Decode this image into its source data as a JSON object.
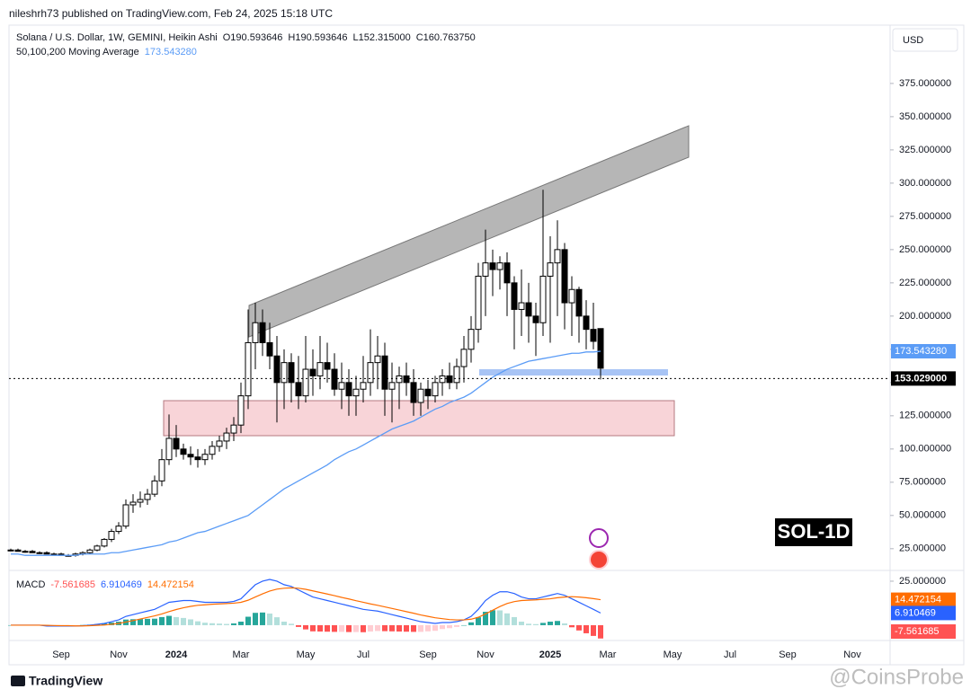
{
  "page": {
    "author_line": "nileshrh73 published on TradingView.com, Feb 24, 2025 15:18 UTC",
    "footer": "TradingView",
    "watermark": "@CoinsProbe"
  },
  "chart_data": {
    "type": "candlestick",
    "title": "Solana / U.S. Dollar, 1W, GEMINI, Heikin Ashi",
    "ohlc_labels": [
      "O190.593646",
      "H190.593646",
      "L152.315000",
      "C160.763750"
    ],
    "currency": "USD",
    "annotation": "SOL-1D",
    "up_color": "#ffffff",
    "down_color": "#000000",
    "categories": [
      null,
      null,
      null,
      null,
      null,
      null,
      null,
      "Sep",
      null,
      null,
      null,
      null,
      null,
      null,
      null,
      "Nov",
      null,
      null,
      null,
      null,
      null,
      null,
      null,
      "2024",
      null,
      null,
      null,
      null,
      null,
      null,
      null,
      null,
      "Mar",
      null,
      null,
      null,
      null,
      null,
      null,
      null,
      null,
      "May",
      null,
      null,
      null,
      null,
      null,
      null,
      null,
      "Jul",
      null,
      null,
      null,
      null,
      null,
      null,
      null,
      null,
      "Sep",
      null,
      null,
      null,
      null,
      null,
      null,
      null,
      "Nov",
      null,
      null,
      null,
      null,
      null,
      null,
      null,
      null,
      "2025",
      null,
      null,
      null,
      null,
      null,
      null,
      null,
      "Mar",
      null,
      null,
      null,
      null,
      null,
      null,
      null,
      null,
      "May",
      null,
      null,
      null,
      null,
      null,
      null,
      null,
      "Jul",
      null,
      null,
      null,
      null,
      null,
      null,
      null,
      "Sep",
      null,
      null,
      null,
      null,
      null,
      null,
      null,
      null,
      "Nov"
    ],
    "open": [
      24,
      24,
      23,
      23,
      22,
      22,
      21,
      21,
      20,
      20,
      21,
      22,
      24,
      27,
      32,
      38,
      42,
      58,
      60,
      62,
      66,
      76,
      92,
      108,
      100,
      96,
      94,
      92,
      96,
      102,
      106,
      112,
      118,
      140,
      180,
      195,
      180,
      170,
      150,
      165,
      150,
      140,
      160,
      155,
      165,
      160,
      145,
      150,
      140,
      145,
      150,
      165,
      170,
      145,
      150,
      155,
      150,
      135,
      145,
      140,
      150,
      155,
      150,
      162,
      175,
      190,
      230,
      240,
      235,
      240,
      225,
      205,
      210,
      200,
      195,
      230,
      240,
      250,
      210,
      220,
      200,
      190,
      190.593646,
      null,
      null,
      null,
      null,
      null,
      null,
      null,
      null,
      null,
      null,
      null,
      null,
      null,
      null,
      null,
      null,
      null,
      null,
      null,
      null,
      null,
      null,
      null,
      null,
      null,
      null,
      null,
      null,
      null,
      null,
      null,
      null,
      null,
      null,
      null
    ],
    "high": [
      25,
      25,
      24,
      24,
      23,
      23,
      22,
      22,
      21,
      22,
      23,
      25,
      28,
      33,
      40,
      45,
      62,
      66,
      68,
      70,
      80,
      100,
      126,
      118,
      104,
      102,
      100,
      100,
      106,
      110,
      116,
      124,
      150,
      205,
      210,
      205,
      195,
      185,
      175,
      172,
      170,
      185,
      175,
      185,
      180,
      172,
      165,
      160,
      155,
      170,
      190,
      185,
      180,
      165,
      162,
      165,
      160,
      150,
      152,
      155,
      160,
      165,
      168,
      185,
      200,
      240,
      265,
      250,
      245,
      248,
      230,
      235,
      225,
      210,
      295,
      260,
      272,
      255,
      230,
      222,
      212,
      210,
      190.593646,
      null,
      null,
      null,
      null,
      null,
      null,
      null,
      null,
      null,
      null,
      null,
      null,
      null,
      null,
      null,
      null,
      null,
      null,
      null,
      null,
      null,
      null,
      null,
      null,
      null,
      null,
      null,
      null,
      null,
      null,
      null,
      null,
      null,
      null,
      null
    ],
    "low": [
      23,
      23,
      22,
      22,
      21,
      21,
      20,
      20,
      19,
      19,
      20,
      21,
      23,
      26,
      30,
      36,
      40,
      52,
      56,
      58,
      64,
      72,
      88,
      94,
      92,
      88,
      86,
      88,
      92,
      98,
      100,
      106,
      112,
      130,
      160,
      170,
      160,
      120,
      130,
      135,
      130,
      135,
      140,
      145,
      150,
      140,
      130,
      125,
      125,
      135,
      140,
      145,
      125,
      120,
      130,
      140,
      125,
      125,
      130,
      135,
      140,
      145,
      145,
      150,
      165,
      180,
      200,
      215,
      220,
      200,
      175,
      185,
      180,
      170,
      185,
      180,
      200,
      190,
      185,
      180,
      175,
      175,
      152.315,
      null,
      null,
      null,
      null,
      null,
      null,
      null,
      null,
      null,
      null,
      null,
      null,
      null,
      null,
      null,
      null,
      null,
      null,
      null,
      null,
      null,
      null,
      null,
      null,
      null,
      null,
      null,
      null,
      null,
      null,
      null,
      null,
      null,
      null,
      null
    ],
    "close": [
      24,
      23,
      23,
      22,
      22,
      21,
      21,
      20,
      20,
      21,
      22,
      24,
      27,
      32,
      38,
      42,
      58,
      60,
      62,
      66,
      76,
      92,
      108,
      100,
      96,
      94,
      92,
      96,
      102,
      106,
      112,
      118,
      140,
      180,
      195,
      180,
      170,
      150,
      165,
      150,
      140,
      160,
      155,
      165,
      160,
      145,
      150,
      140,
      145,
      150,
      165,
      170,
      145,
      150,
      155,
      150,
      135,
      145,
      140,
      150,
      155,
      150,
      162,
      175,
      190,
      230,
      240,
      235,
      240,
      225,
      205,
      210,
      200,
      195,
      230,
      240,
      250,
      210,
      220,
      200,
      190,
      181,
      160.76375,
      null,
      null,
      null,
      null,
      null,
      null,
      null,
      null,
      null,
      null,
      null,
      null,
      null,
      null,
      null,
      null,
      null,
      null,
      null,
      null,
      null,
      null,
      null,
      null,
      null,
      null,
      null,
      null,
      null,
      null,
      null,
      null,
      null,
      null,
      null
    ],
    "ylim": [
      10,
      417.5
    ],
    "yticks": [
      {
        "value": 25,
        "label": "25.000000"
      },
      {
        "value": 50,
        "label": "50.000000"
      },
      {
        "value": 75,
        "label": "75.000000"
      },
      {
        "value": 100,
        "label": "100.000000"
      },
      {
        "value": 125,
        "label": "125.000000"
      },
      {
        "value": 150,
        "label": "150.000000"
      },
      {
        "value": 175,
        "label": "175.000000"
      },
      {
        "value": 200,
        "label": "200.000000"
      },
      {
        "value": 225,
        "label": "225.000000"
      },
      {
        "value": 250,
        "label": "250.000000"
      },
      {
        "value": 275,
        "label": "275.000000"
      },
      {
        "value": 300,
        "label": "300.000000"
      },
      {
        "value": 325,
        "label": "325.000000"
      },
      {
        "value": 350,
        "label": "350.000000"
      },
      {
        "value": 375,
        "label": "375.000000"
      }
    ],
    "ma": {
      "name": "50,100,200 Moving Average",
      "color": "#5b9cf6",
      "value_label": "173.543280",
      "values": [
        21,
        21,
        20,
        20,
        20,
        20,
        20,
        20,
        20,
        20,
        21,
        21,
        21,
        21,
        22,
        22,
        23,
        24,
        25,
        26,
        27,
        28,
        30,
        31,
        33,
        35,
        37,
        38,
        40,
        42,
        44,
        46,
        48,
        50,
        54,
        58,
        62,
        66,
        70,
        73,
        76,
        79,
        82,
        85,
        88,
        92,
        95,
        98,
        100,
        103,
        106,
        109,
        112,
        115,
        117,
        119,
        121,
        124,
        127,
        130,
        132,
        135,
        137,
        139,
        142,
        146,
        150,
        154,
        157,
        160,
        162,
        164,
        166,
        167,
        168,
        169,
        170,
        171,
        172,
        172,
        173,
        173,
        173.54328,
        null,
        null,
        null,
        null,
        null,
        null,
        null,
        null,
        null,
        null,
        null,
        null,
        null,
        null,
        null,
        null,
        null,
        null,
        null,
        null,
        null,
        null,
        null,
        null,
        null,
        null,
        null,
        null,
        null,
        null,
        null,
        null,
        null,
        null,
        null
      ]
    },
    "last_price": {
      "value": 153.029,
      "label": "153.029000"
    },
    "macd": {
      "title": "MACD",
      "ylim": [
        -8.2,
        30.6
      ],
      "yticks": [
        {
          "value": 25,
          "label": "25.000000"
        }
      ],
      "histogram": {
        "value_label": "-7.561685",
        "colors": [
          "#26a69a",
          "#b2dfdb",
          "#ffcdd2",
          "#ff5252"
        ],
        "values": [
          0,
          0,
          0,
          0,
          0,
          -0.4,
          -0.3,
          -0.2,
          -0.2,
          -0.1,
          0.1,
          0.3,
          0.6,
          0.9,
          1.5,
          2,
          3.2,
          3.4,
          3.5,
          3.6,
          3.7,
          4.6,
          5.3,
          4.6,
          4.1,
          3.3,
          2.2,
          1.4,
          1.1,
          0.9,
          0.7,
          1,
          2,
          4.8,
          7,
          7.2,
          6.6,
          4.5,
          2,
          0.8,
          -1,
          -2.4,
          -3.5,
          -3.6,
          -3.7,
          -3.8,
          -3.8,
          -3.9,
          -3.9,
          -4,
          -3.6,
          -3.3,
          -3.4,
          -3.5,
          -3.6,
          -3.7,
          -3.8,
          -3.8,
          -3.5,
          -3.2,
          -2.2,
          -1.7,
          -1,
          0,
          1.6,
          4.5,
          7.6,
          8.5,
          8.4,
          6.7,
          4.6,
          2,
          0.8,
          0.6,
          1.3,
          2,
          2.4,
          1,
          -1.2,
          -3,
          -4.6,
          -6.1,
          -7.561685,
          null,
          null,
          null,
          null,
          null,
          null,
          null,
          null,
          null,
          null,
          null,
          null,
          null,
          null,
          null,
          null,
          null,
          null,
          null,
          null,
          null,
          null,
          null,
          null,
          null,
          null,
          null,
          null,
          null,
          null,
          null,
          null,
          null,
          null,
          null
        ]
      },
      "macd_line": {
        "color": "#2962ff",
        "value_label": "6.910469",
        "values": [
          0,
          0,
          0,
          0,
          0,
          -0.5,
          -0.5,
          -0.5,
          -0.5,
          -0.5,
          -0.3,
          0,
          0.5,
          1,
          2,
          3,
          5,
          6,
          7,
          8,
          9,
          11,
          13,
          13.5,
          14,
          14,
          13.5,
          13,
          13,
          13,
          13,
          13.5,
          15,
          19,
          23,
          25,
          26,
          25,
          23,
          22,
          20,
          18,
          16,
          15,
          14,
          13,
          12,
          11,
          10,
          9,
          8.5,
          8,
          7,
          6,
          5,
          4,
          3,
          2,
          1.5,
          1,
          1.5,
          1.5,
          2,
          3,
          5,
          9,
          14,
          17,
          19,
          19,
          18,
          16,
          15,
          15,
          16,
          17,
          18,
          17,
          15,
          13,
          11,
          9,
          6.910469,
          null,
          null,
          null,
          null,
          null,
          null,
          null,
          null,
          null,
          null,
          null,
          null,
          null,
          null,
          null,
          null,
          null,
          null,
          null,
          null,
          null,
          null,
          null,
          null,
          null,
          null,
          null,
          null,
          null,
          null,
          null,
          null,
          null,
          null,
          null
        ]
      },
      "signal_line": {
        "color": "#ff6d00",
        "value_label": "14.472154",
        "values": [
          0,
          0,
          0,
          0,
          0,
          -0.1,
          -0.2,
          -0.3,
          -0.3,
          -0.4,
          -0.4,
          -0.3,
          -0.1,
          0.1,
          0.5,
          1,
          1.8,
          2.6,
          3.5,
          4.4,
          5.3,
          6.4,
          7.7,
          8.9,
          9.9,
          10.7,
          11.3,
          11.6,
          11.9,
          12.1,
          12.3,
          12.5,
          13,
          14.2,
          16,
          17.8,
          19.4,
          20.5,
          21,
          21.2,
          21,
          20.4,
          19.5,
          18.6,
          17.7,
          16.8,
          15.8,
          14.9,
          13.9,
          13,
          12.1,
          11.3,
          10.4,
          9.5,
          8.6,
          7.7,
          6.8,
          5.8,
          5,
          4.2,
          3.7,
          3.2,
          3,
          3,
          3.4,
          4.5,
          6.4,
          8.5,
          10.6,
          12.3,
          13.4,
          14,
          14.2,
          14.4,
          14.7,
          15,
          15.6,
          16,
          16.2,
          16,
          15.6,
          15.1,
          14.472154,
          null,
          null,
          null,
          null,
          null,
          null,
          null,
          null,
          null,
          null,
          null,
          null,
          null,
          null,
          null,
          null,
          null,
          null,
          null,
          null,
          null,
          null,
          null,
          null,
          null,
          null,
          null,
          null,
          null,
          null,
          null,
          null,
          null,
          null,
          null
        ]
      }
    }
  }
}
